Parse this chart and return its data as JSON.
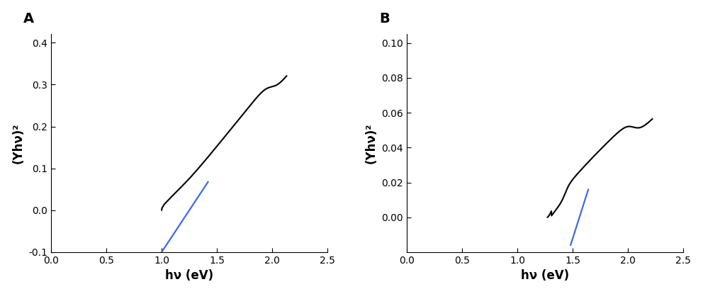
{
  "panel_A": {
    "label": "A",
    "xlabel": "hν (eV)",
    "ylabel": "(Yhν)²",
    "xlim": [
      0.0,
      2.5
    ],
    "ylim": [
      -0.1,
      0.42
    ],
    "xticks": [
      0.0,
      0.5,
      1.0,
      1.5,
      2.0,
      2.5
    ],
    "yticks": [
      -0.1,
      0.0,
      0.1,
      0.2,
      0.3,
      0.4
    ],
    "curve_x_start": 1.0,
    "curve_x_end": 2.13,
    "curve_color": "#000000",
    "line_color": "#4169e1",
    "line_x": [
      1.0,
      1.42
    ],
    "line_y": [
      -0.1,
      0.068
    ],
    "line_width": 1.6
  },
  "panel_B": {
    "label": "B",
    "xlabel": "hν (eV)",
    "ylabel": "(Yhν)²",
    "xlim": [
      0.0,
      2.5
    ],
    "ylim": [
      -0.02,
      0.105
    ],
    "xticks": [
      0.0,
      0.5,
      1.0,
      1.5,
      2.0,
      2.5
    ],
    "yticks": [
      0.0,
      0.02,
      0.04,
      0.06,
      0.08,
      0.1
    ],
    "curve_x_start": 1.27,
    "curve_x_end": 2.22,
    "curve_color": "#000000",
    "line_color": "#4169e1",
    "line_x": [
      1.48,
      1.64
    ],
    "line_y": [
      -0.016,
      0.016
    ],
    "line_width": 1.6
  },
  "figure_bg": "#ffffff",
  "spine_color": "#000000",
  "tick_labelsize": 10,
  "axis_labelsize": 12,
  "label_fontsize": 14,
  "label_fontweight": "bold"
}
